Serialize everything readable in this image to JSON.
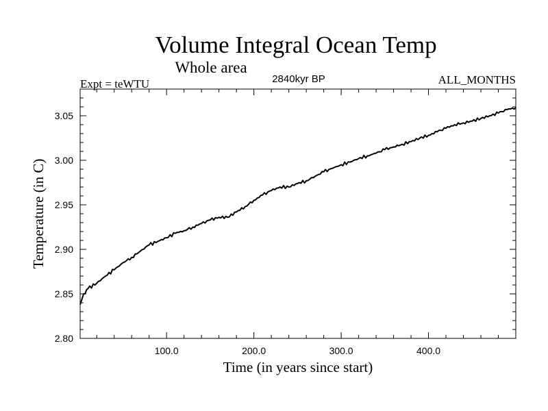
{
  "chart_data": {
    "type": "line",
    "title": "Volume Integral Ocean Temp",
    "subtitle": "Whole area",
    "annotations": {
      "left": "Expt = teWTU",
      "center": "2840kyr BP",
      "right": "ALL_MONTHS"
    },
    "xlabel": "Time (in years since start)",
    "ylabel": "Temperature (in C)",
    "xlim": [
      1,
      500
    ],
    "ylim": [
      2.8,
      3.08
    ],
    "xticks": [
      100,
      200,
      300,
      400
    ],
    "xtick_labels": [
      "100.0",
      "200.0",
      "300.0",
      "400.0"
    ],
    "yticks": [
      2.8,
      2.85,
      2.9,
      2.95,
      3.0,
      3.05
    ],
    "ytick_labels": [
      "2.80",
      "2.85",
      "2.90",
      "2.95",
      "3.00",
      "3.05"
    ],
    "grid": false,
    "series": [
      {
        "name": "Volume Integral Ocean Temp",
        "x": [
          1,
          5,
          10,
          20,
          30,
          40,
          50,
          60,
          70,
          80,
          90,
          100,
          110,
          120,
          130,
          140,
          150,
          160,
          170,
          180,
          190,
          200,
          210,
          220,
          230,
          240,
          250,
          260,
          270,
          280,
          290,
          300,
          310,
          320,
          330,
          340,
          350,
          360,
          370,
          380,
          390,
          400,
          410,
          420,
          430,
          440,
          450,
          460,
          470,
          480,
          490,
          500
        ],
        "y": [
          2.838,
          2.85,
          2.856,
          2.862,
          2.87,
          2.877,
          2.885,
          2.891,
          2.898,
          2.905,
          2.909,
          2.913,
          2.918,
          2.921,
          2.925,
          2.929,
          2.933,
          2.936,
          2.936,
          2.942,
          2.948,
          2.955,
          2.961,
          2.966,
          2.97,
          2.97,
          2.974,
          2.977,
          2.982,
          2.987,
          2.991,
          2.995,
          2.998,
          3.002,
          3.005,
          3.008,
          3.012,
          3.015,
          3.018,
          3.021,
          3.025,
          3.028,
          3.032,
          3.036,
          3.04,
          3.042,
          3.044,
          3.047,
          3.05,
          3.053,
          3.057,
          3.059
        ]
      }
    ]
  }
}
